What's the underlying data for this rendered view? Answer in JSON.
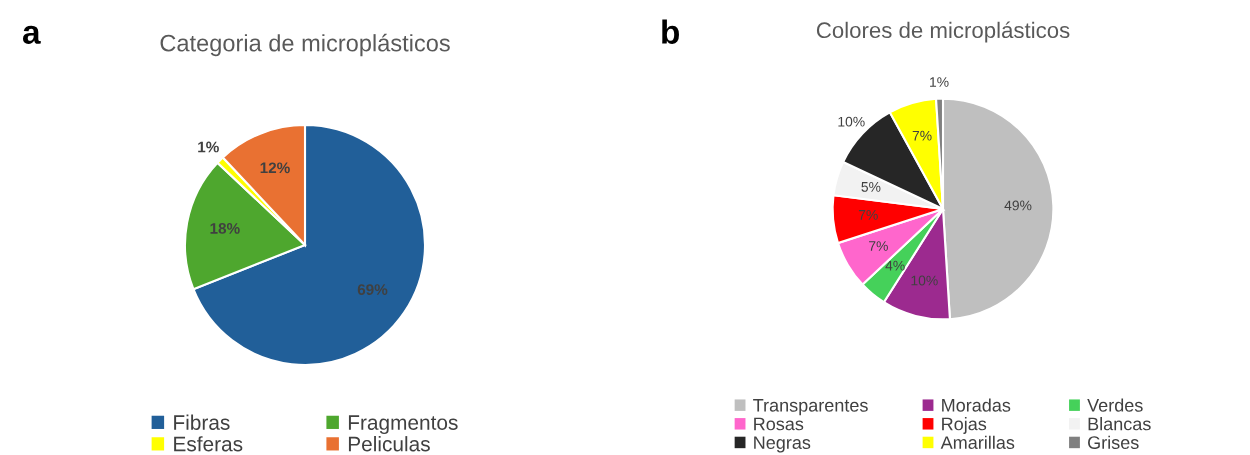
{
  "chart_data": [
    {
      "type": "pie",
      "title": "Categoria de microplásticos",
      "annotations": [
        "a"
      ],
      "legend": "bottom",
      "categories": [
        "Fibras",
        "Fragmentos",
        "Esferas",
        "Peliculas"
      ],
      "values": [
        69,
        18,
        1,
        12
      ],
      "colors": [
        "#215f99",
        "#4ea72e",
        "#ffff00",
        "#e97132"
      ],
      "value_labels": [
        "69%",
        "18%",
        "1%",
        "12%"
      ]
    },
    {
      "type": "pie",
      "title": "Colores de microplásticos",
      "annotations": [
        "b"
      ],
      "legend": "bottom",
      "categories": [
        "Transparentes",
        "Moradas",
        "Verdes",
        "Rosas",
        "Rojas",
        "Blancas",
        "Negras",
        "Amarillas",
        "Grises"
      ],
      "values": [
        49,
        10,
        4,
        7,
        7,
        5,
        10,
        7,
        1
      ],
      "colors": [
        "#bfbfbf",
        "#9c2a8f",
        "#45d15a",
        "#ff66cc",
        "#ff0000",
        "#f2f2f2",
        "#262626",
        "#ffff00",
        "#808080"
      ],
      "value_labels": [
        "49%",
        "10%",
        "4%",
        "7%",
        "7%",
        "5%",
        "10%",
        "7%",
        "1%"
      ]
    }
  ]
}
